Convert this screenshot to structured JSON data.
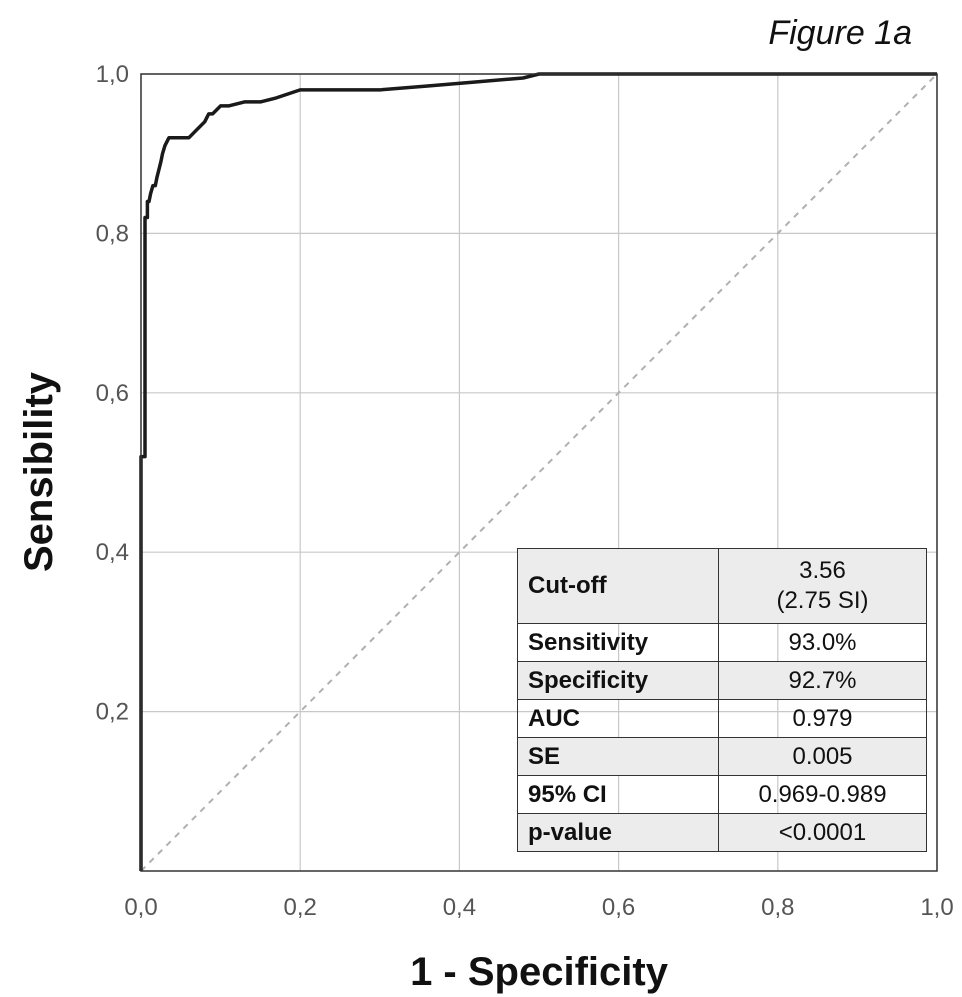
{
  "figure_label": "Figure 1a",
  "chart_data": {
    "type": "line",
    "xlabel": "1 - Specificity",
    "ylabel": "Sensibility",
    "xlim": [
      0,
      1
    ],
    "ylim": [
      0,
      1
    ],
    "x_ticks": [
      "0,0",
      "0,2",
      "0,4",
      "0,6",
      "0,8",
      "1,0"
    ],
    "y_ticks": [
      "0,2",
      "0,4",
      "0,6",
      "0,8",
      "1,0"
    ],
    "grid": true,
    "series": [
      {
        "style": "solid",
        "color": "#1a1a1a",
        "x": [
          0,
          0,
          0.005,
          0.005,
          0.008,
          0.008,
          0.01,
          0.012,
          0.015,
          0.018,
          0.02,
          0.025,
          0.027,
          0.03,
          0.035,
          0.04,
          0.06,
          0.07,
          0.08,
          0.085,
          0.09,
          0.1,
          0.11,
          0.13,
          0.15,
          0.17,
          0.2,
          0.22,
          0.3,
          0.36,
          0.42,
          0.48,
          0.5,
          0.52,
          0.8,
          1.0
        ],
        "y": [
          0,
          0.52,
          0.52,
          0.82,
          0.82,
          0.84,
          0.84,
          0.85,
          0.86,
          0.86,
          0.87,
          0.89,
          0.9,
          0.91,
          0.92,
          0.92,
          0.92,
          0.93,
          0.94,
          0.95,
          0.95,
          0.96,
          0.96,
          0.965,
          0.965,
          0.97,
          0.98,
          0.98,
          0.98,
          0.985,
          0.99,
          0.995,
          1.0,
          1.0,
          1.0,
          1.0
        ]
      },
      {
        "style": "dotted",
        "color": "#b0b0b0",
        "x": [
          0,
          1
        ],
        "y": [
          0,
          1
        ]
      }
    ]
  },
  "stats_table": {
    "rows": [
      {
        "label": "Cut-off",
        "value": "3.56",
        "value2": "(2.75 SI)"
      },
      {
        "label": "Sensitivity",
        "value": "93.0%"
      },
      {
        "label": "Specificity",
        "value": "92.7%"
      },
      {
        "label": "AUC",
        "value": "0.979"
      },
      {
        "label": "SE",
        "value": "0.005"
      },
      {
        "label": "95% CI",
        "value": "0.969-0.989"
      },
      {
        "label": "p-value",
        "value": "<0.0001"
      }
    ]
  }
}
